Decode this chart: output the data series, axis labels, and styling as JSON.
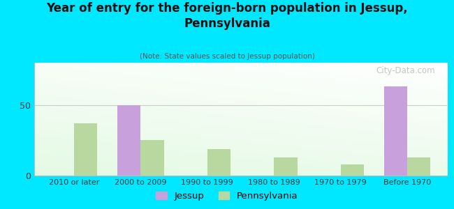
{
  "title": "Year of entry for the foreign-born population in Jessup,\nPennsylvania",
  "subtitle": "(Note: State values scaled to Jessup population)",
  "categories": [
    "2010 or later",
    "2000 to 2009",
    "1990 to 1999",
    "1980 to 1989",
    "1970 to 1979",
    "Before 1970"
  ],
  "jessup_values": [
    0,
    50,
    0,
    0,
    0,
    63
  ],
  "pennsylvania_values": [
    37,
    25,
    19,
    13,
    8,
    13
  ],
  "jessup_color": "#c8a0dc",
  "pennsylvania_color": "#b8d8a0",
  "background_outer": "#00e8ff",
  "ylim": [
    0,
    80
  ],
  "yticks": [
    0,
    50
  ],
  "bar_width": 0.35,
  "watermark": "City-Data.com"
}
